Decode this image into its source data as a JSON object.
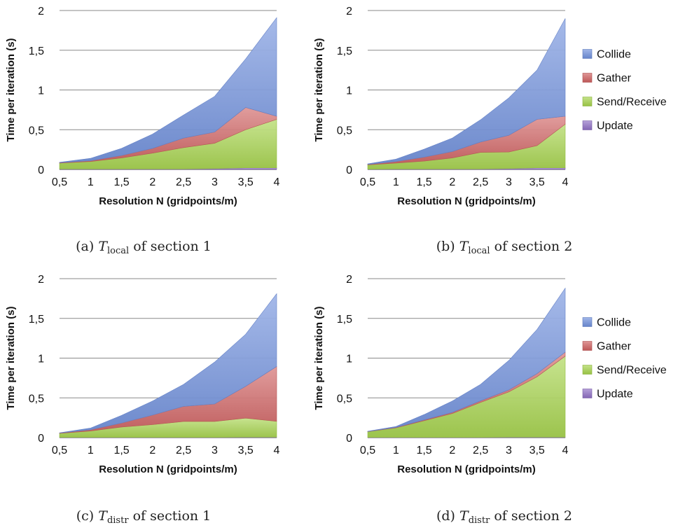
{
  "figure": {
    "legend_placement": "right",
    "colors": {
      "Collide": "#6f8fdc",
      "Gather": "#cd5f5f",
      "Send/Receive": "#a4d24a",
      "Update": "#8e6fc4"
    }
  },
  "chart_data": [
    {
      "id": "a",
      "type": "area",
      "stacked": true,
      "caption_prefix": "(a) ",
      "caption_var": "T",
      "caption_sub": "local",
      "caption_suffix": " of section 1",
      "xlabel": "Resolution N (gridpoints/m)",
      "ylabel": "Time per iteration (s)",
      "x": [
        0.5,
        1,
        1.5,
        2,
        2.5,
        3,
        3.5,
        4
      ],
      "x_tick_labels": [
        "0,5",
        "1",
        "1,5",
        "2",
        "2,5",
        "3",
        "3,5",
        "4"
      ],
      "y_ticks": [
        0,
        0.5,
        1,
        1.5,
        2
      ],
      "y_tick_labels": [
        "0",
        "0,5",
        "1",
        "1,5",
        "2"
      ],
      "ylim": [
        0,
        2
      ],
      "grid": true,
      "legend": false,
      "series": [
        {
          "name": "Update",
          "values": [
            0.005,
            0.005,
            0.005,
            0.005,
            0.005,
            0.01,
            0.02,
            0.02
          ]
        },
        {
          "name": "Send/Receive",
          "values": [
            0.075,
            0.095,
            0.14,
            0.2,
            0.27,
            0.32,
            0.48,
            0.61
          ]
        },
        {
          "name": "Gather",
          "values": [
            0.005,
            0.01,
            0.03,
            0.06,
            0.12,
            0.14,
            0.28,
            0.04
          ]
        },
        {
          "name": "Collide",
          "values": [
            0.005,
            0.03,
            0.09,
            0.18,
            0.29,
            0.45,
            0.61,
            1.24
          ]
        }
      ]
    },
    {
      "id": "b",
      "type": "area",
      "stacked": true,
      "caption_prefix": "(b) ",
      "caption_var": "T",
      "caption_sub": "local",
      "caption_suffix": " of section 2",
      "xlabel": "Resolution N (gridpoints/m)",
      "ylabel": "Time per iteration (s)",
      "x": [
        0.5,
        1,
        1.5,
        2,
        2.5,
        3,
        3.5,
        4
      ],
      "x_tick_labels": [
        "0,5",
        "1",
        "1,5",
        "2",
        "2,5",
        "3",
        "3,5",
        "4"
      ],
      "y_ticks": [
        0,
        0.5,
        1,
        1.5,
        2
      ],
      "y_tick_labels": [
        "0",
        "0,5",
        "1",
        "1,5",
        "2"
      ],
      "ylim": [
        0,
        2
      ],
      "grid": true,
      "legend": true,
      "series": [
        {
          "name": "Update",
          "values": [
            0.003,
            0.005,
            0.005,
            0.005,
            0.005,
            0.01,
            0.02,
            0.02
          ]
        },
        {
          "name": "Send/Receive",
          "values": [
            0.055,
            0.075,
            0.1,
            0.14,
            0.21,
            0.21,
            0.28,
            0.55
          ]
        },
        {
          "name": "Gather",
          "values": [
            0.005,
            0.02,
            0.05,
            0.08,
            0.13,
            0.21,
            0.33,
            0.1
          ]
        },
        {
          "name": "Collide",
          "values": [
            0.007,
            0.03,
            0.1,
            0.17,
            0.28,
            0.47,
            0.62,
            1.23
          ]
        }
      ]
    },
    {
      "id": "c",
      "type": "area",
      "stacked": true,
      "caption_prefix": "(c) ",
      "caption_var": "T",
      "caption_sub": "distr",
      "caption_suffix": " of section 1",
      "xlabel": "Resolution N (gridpoints/m)",
      "ylabel": "Time per iteration (s)",
      "x": [
        0.5,
        1,
        1.5,
        2,
        2.5,
        3,
        3.5,
        4
      ],
      "x_tick_labels": [
        "0,5",
        "1",
        "1,5",
        "2",
        "2,5",
        "3",
        "3,5",
        "4"
      ],
      "y_ticks": [
        0,
        0.5,
        1,
        1.5,
        2
      ],
      "y_tick_labels": [
        "0",
        "0,5",
        "1",
        "1,5",
        "2"
      ],
      "ylim": [
        0,
        2
      ],
      "grid": true,
      "legend": false,
      "series": [
        {
          "name": "Update",
          "values": [
            0.003,
            0.003,
            0.003,
            0.003,
            0.003,
            0.003,
            0.005,
            0.005
          ]
        },
        {
          "name": "Send/Receive",
          "values": [
            0.05,
            0.08,
            0.13,
            0.16,
            0.2,
            0.2,
            0.24,
            0.2
          ]
        },
        {
          "name": "Gather",
          "values": [
            0.005,
            0.015,
            0.05,
            0.12,
            0.19,
            0.22,
            0.4,
            0.69
          ]
        },
        {
          "name": "Collide",
          "values": [
            0.002,
            0.022,
            0.097,
            0.177,
            0.277,
            0.527,
            0.655,
            0.915
          ]
        }
      ]
    },
    {
      "id": "d",
      "type": "area",
      "stacked": true,
      "caption_prefix": "(d) ",
      "caption_var": "T",
      "caption_sub": "distr",
      "caption_suffix": " of section 2",
      "xlabel": "Resolution N (gridpoints/m)",
      "ylabel": "Time per iteration (s)",
      "x": [
        0.5,
        1,
        1.5,
        2,
        2.5,
        3,
        3.5,
        4
      ],
      "x_tick_labels": [
        "0,5",
        "1",
        "1,5",
        "2",
        "2,5",
        "3",
        "3,5",
        "4"
      ],
      "y_ticks": [
        0,
        0.5,
        1,
        1.5,
        2
      ],
      "y_tick_labels": [
        "0",
        "0,5",
        "1",
        "1,5",
        "2"
      ],
      "ylim": [
        0,
        2
      ],
      "grid": true,
      "legend": true,
      "series": [
        {
          "name": "Update",
          "values": [
            0.003,
            0.003,
            0.003,
            0.003,
            0.003,
            0.005,
            0.005,
            0.005
          ]
        },
        {
          "name": "Send/Receive",
          "values": [
            0.072,
            0.12,
            0.21,
            0.3,
            0.44,
            0.57,
            0.76,
            1.02
          ]
        },
        {
          "name": "Gather",
          "values": [
            0.002,
            0.005,
            0.01,
            0.015,
            0.02,
            0.025,
            0.04,
            0.05
          ]
        },
        {
          "name": "Collide",
          "values": [
            0.003,
            0.012,
            0.067,
            0.142,
            0.207,
            0.37,
            0.555,
            0.805
          ]
        }
      ]
    }
  ]
}
